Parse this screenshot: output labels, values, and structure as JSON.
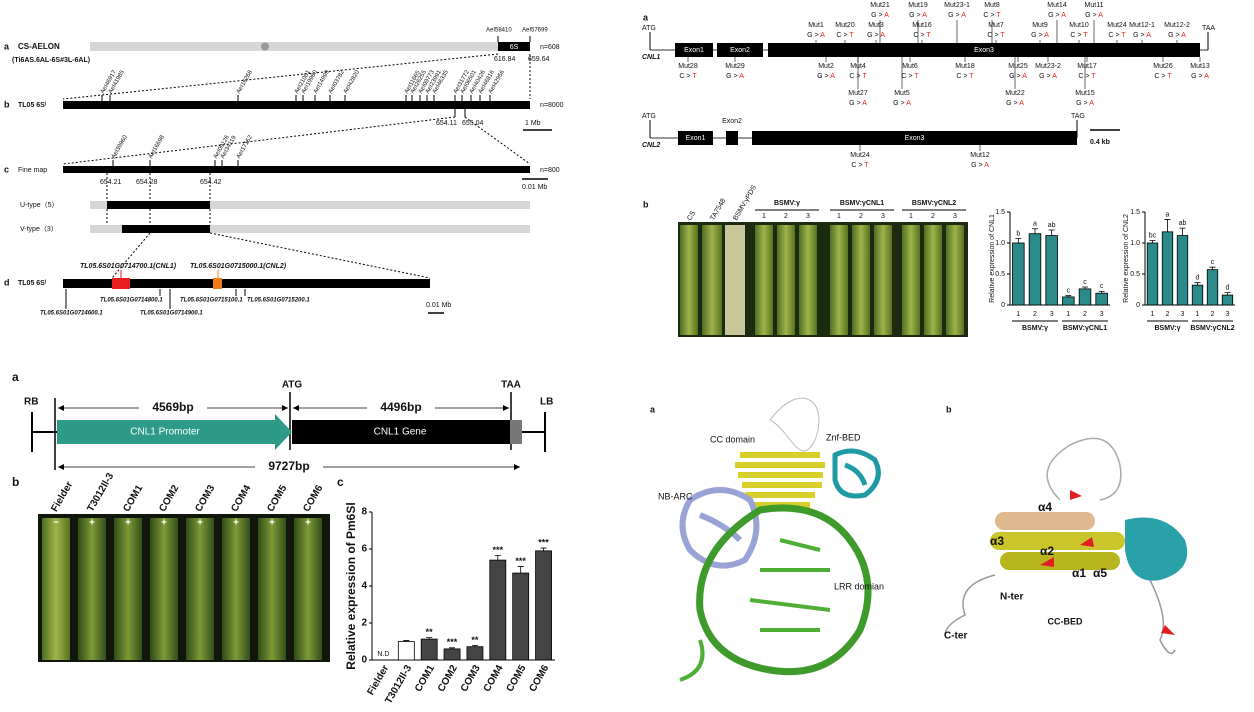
{
  "genetic_map": {
    "panel_labels": [
      "a",
      "b",
      "c",
      "d"
    ],
    "a": {
      "name": "CS-AELON",
      "genotype": "(Ti6AS.6AL-6S#3L-6AL)",
      "markers": [
        "AeI58410",
        "AeI57699"
      ],
      "positions": [
        616.84,
        659.64
      ],
      "segment": "6S",
      "n": "n=608"
    },
    "b": {
      "name": "TL05 6Sˡ",
      "markers": [
        "AeI46917",
        "AeI41985",
        "AeI16268",
        "AeI21001",
        "AeI19980",
        "AeI14999",
        "AeI03782",
        "AeI42820",
        "AeI11665",
        "AeI26255",
        "AeI09773",
        "AeI23991",
        "AeI46335",
        "AeI31772",
        "AeI06501",
        "AeI40426",
        "AeI46816",
        "AeI42956"
      ],
      "positions": [
        654.11,
        655.04
      ],
      "n": "n=8000",
      "scale": "1 Mb"
    },
    "c": {
      "name": "Fine map",
      "markers": [
        "AeI39960",
        "AeI16698",
        "AeI09126",
        "AeI34119",
        "AeI17152"
      ],
      "positions": [
        654.21,
        654.28,
        654.42
      ],
      "n": "n=800",
      "scale": "0.01 Mb"
    },
    "recombinants": [
      "U-type（5）",
      "V-type（3）"
    ],
    "d": {
      "name": "TL05 6Sˡ",
      "candidates": [
        "TL05.6S01G0714700.1(CNL1)",
        "TL05.6S01G0715000.1(CNL2)"
      ],
      "genes": [
        "TL05.6S01G0714600.1",
        "TL05.6S01G0714800.1",
        "TL05.6S01G0714900.1",
        "TL05.6S01G0715100.1",
        "TL05.6S01G0715200.1"
      ],
      "scale": "0.01 Mb"
    }
  },
  "gene_structure": {
    "panel_label": "a",
    "cnl1": {
      "name": "CNL1",
      "start": "ATG",
      "stop": "TAA",
      "exons": [
        "Exon1",
        "Exon2",
        "Exon3"
      ],
      "mutations_above": [
        {
          "name": "Mut1",
          "ref": "G >",
          "alt": "A"
        },
        {
          "name": "Mut20",
          "ref": "C >",
          "alt": "T"
        },
        {
          "name": "Mut3",
          "ref": "G >",
          "alt": "A"
        },
        {
          "name": "Mut21",
          "ref": "G >",
          "alt": "A"
        },
        {
          "name": "Mut19",
          "ref": "G >",
          "alt": "A"
        },
        {
          "name": "Mut16",
          "ref": "C >",
          "alt": "T"
        },
        {
          "name": "Mut23-1",
          "ref": "G >",
          "alt": "A"
        },
        {
          "name": "Mut8",
          "ref": "C >",
          "alt": "T"
        },
        {
          "name": "Mut7",
          "ref": "C >",
          "alt": "T"
        },
        {
          "name": "Mut9",
          "ref": "G >",
          "alt": "A"
        },
        {
          "name": "Mut14",
          "ref": "G >",
          "alt": "A"
        },
        {
          "name": "Mut10",
          "ref": "C >",
          "alt": "T"
        },
        {
          "name": "Mut11",
          "ref": "G >",
          "alt": "A"
        },
        {
          "name": "Mut24",
          "ref": "C >",
          "alt": "T"
        },
        {
          "name": "Mut12-1",
          "ref": "G >",
          "alt": "A"
        },
        {
          "name": "Mut12-2",
          "ref": "G >",
          "alt": "A"
        }
      ],
      "mutations_below": [
        {
          "name": "Mut28",
          "ref": "C >",
          "alt": "T"
        },
        {
          "name": "Mut29",
          "ref": "G >",
          "alt": "A"
        },
        {
          "name": "Mut2",
          "ref": "G >",
          "alt": "A"
        },
        {
          "name": "Mut4",
          "ref": "C >",
          "alt": "T"
        },
        {
          "name": "Mut27",
          "ref": "G >",
          "alt": "A"
        },
        {
          "name": "Mut6",
          "ref": "C >",
          "alt": "T"
        },
        {
          "name": "Mut5",
          "ref": "G >",
          "alt": "A"
        },
        {
          "name": "Mut18",
          "ref": "C >",
          "alt": "T"
        },
        {
          "name": "Mut25",
          "ref": "G >",
          "alt": "A"
        },
        {
          "name": "Mut22",
          "ref": "G >",
          "alt": "A"
        },
        {
          "name": "Mut23-2",
          "ref": "G >",
          "alt": "A"
        },
        {
          "name": "Mut17",
          "ref": "C >",
          "alt": "T"
        },
        {
          "name": "Mut15",
          "ref": "G >",
          "alt": "A"
        },
        {
          "name": "Mut26",
          "ref": "C >",
          "alt": "T"
        },
        {
          "name": "Mut13",
          "ref": "G >",
          "alt": "A"
        }
      ]
    },
    "cnl2": {
      "name": "CNL2",
      "start": "ATG",
      "stop": "TAG",
      "exons": [
        "Exon1",
        "Exon2",
        "Exon3"
      ],
      "mutations": [
        {
          "name": "Mut24",
          "ref": "C >",
          "alt": "T"
        },
        {
          "name": "Mut12",
          "ref": "G >",
          "alt": "A"
        }
      ]
    },
    "scale": "0.4 kb"
  },
  "vigs": {
    "panel_label": "b",
    "controls": [
      "CS",
      "TA7548",
      "BSMV:γPDS"
    ],
    "groups": [
      "BSMV:γ",
      "BSMV:γCNL1",
      "BSMV:γCNL2"
    ],
    "replicates": [
      "1",
      "2",
      "3"
    ]
  },
  "construct": {
    "panel_label": "a",
    "ends": [
      "RB",
      "LB"
    ],
    "start": "ATG",
    "stop": "TAA",
    "lengths": [
      "4569bp",
      "4496bp",
      "9727bp"
    ],
    "parts": [
      "CNL1 Promoter",
      "CNL1 Gene"
    ]
  },
  "complementation": {
    "panel_labels": [
      "b",
      "c"
    ],
    "lines": [
      "Fielder",
      "T3012Il-3",
      "COM1",
      "COM2",
      "COM3",
      "COM4",
      "COM5",
      "COM6"
    ],
    "signs": [
      "−",
      "+",
      "+",
      "+",
      "+",
      "+",
      "+",
      "+"
    ]
  },
  "chart_data": [
    {
      "type": "bar",
      "y_label": "Relative expression of CNL1",
      "categories": [
        "1",
        "2",
        "3",
        "1",
        "2",
        "3"
      ],
      "groups": [
        "BSMV:γ",
        "BSMV:γCNL1"
      ],
      "values": [
        1.0,
        1.15,
        1.12,
        0.13,
        0.26,
        0.19
      ],
      "errors": [
        0.07,
        0.08,
        0.09,
        0.02,
        0.03,
        0.03
      ],
      "letters": [
        "b",
        "a",
        "ab",
        "c",
        "c",
        "c"
      ],
      "color": "#2b8a8a",
      "ylim": [
        0,
        1.5
      ],
      "yticks": [
        0,
        0.5,
        {
          "value": 1,
          "label": "1.0"
        },
        1.5
      ]
    },
    {
      "type": "bar",
      "y_label": "Relative expression of CNL2",
      "categories": [
        "1",
        "2",
        "3",
        "1",
        "2",
        "3"
      ],
      "groups": [
        "BSMV:γ",
        "BSMV:γCNL2"
      ],
      "values": [
        1.0,
        1.18,
        1.12,
        0.32,
        0.57,
        0.16
      ],
      "errors": [
        0.04,
        0.2,
        0.12,
        0.04,
        0.04,
        0.04
      ],
      "letters": [
        "bc",
        "a",
        "ab",
        "d",
        "c",
        "d"
      ],
      "color": "#2b8a8a",
      "ylim": [
        0,
        1.5
      ],
      "yticks": [
        0,
        0.5,
        {
          "value": 1,
          "label": "1.0"
        },
        1.5
      ]
    },
    {
      "type": "bar",
      "y_label": "Relative expression of Pm6Sl",
      "categories": [
        "Fielder",
        "T3012Il-3",
        "COM1",
        "COM2",
        "COM3",
        "COM4",
        "COM5",
        "COM6"
      ],
      "values": [
        null,
        1.0,
        1.13,
        0.6,
        0.72,
        5.4,
        4.7,
        5.9
      ],
      "errors": [
        null,
        0.05,
        0.08,
        0.06,
        0.07,
        0.25,
        0.35,
        0.15
      ],
      "value_labels": [
        "N.D",
        null,
        null,
        null,
        null,
        null,
        null,
        null
      ],
      "significance": [
        null,
        null,
        "**",
        "***",
        "**",
        "***",
        "***",
        "***"
      ],
      "colors": [
        null,
        "#ffffff",
        "#444444",
        "#444444",
        "#444444",
        "#444444",
        "#444444",
        "#444444"
      ],
      "ylim": [
        0,
        8
      ],
      "yticks": [
        0,
        2,
        4,
        6,
        8
      ]
    }
  ],
  "structure": {
    "panel_labels": [
      "a",
      "b"
    ],
    "domains": [
      "CC domain",
      "Znf-BED",
      "NB-ARC",
      "LRR domian"
    ],
    "helices": [
      "α4",
      "α3",
      "α2",
      "α1",
      "α5"
    ],
    "termini": [
      "N-ter",
      "C-ter"
    ],
    "title": "CC-BED"
  }
}
